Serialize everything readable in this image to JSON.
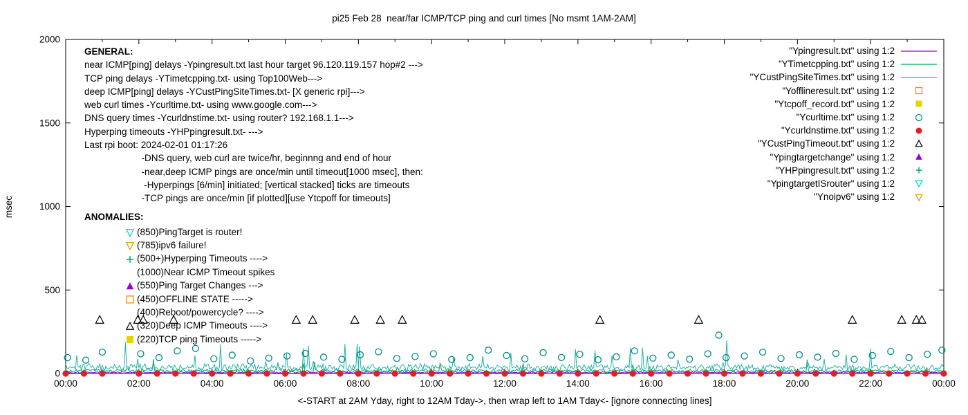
{
  "chart_data": {
    "type": "line",
    "title": "pi25 Feb 28  near/far ICMP/TCP ping and curl times [No msmt 1AM-2AM]",
    "xlabel": "<-START at 2AM Yday, right to 12AM Tday->, then wrap left to 1AM Tday<- [ignore connecting lines]",
    "ylabel": "msec",
    "xlim": [
      0,
      24
    ],
    "ylim": [
      0,
      2000
    ],
    "grid": false,
    "legend_position": "top-right",
    "xticks": [
      {
        "v": 0,
        "label": "00:00"
      },
      {
        "v": 2,
        "label": "02:00"
      },
      {
        "v": 4,
        "label": "04:00"
      },
      {
        "v": 6,
        "label": "06:00"
      },
      {
        "v": 8,
        "label": "08:00"
      },
      {
        "v": 10,
        "label": "10:00"
      },
      {
        "v": 12,
        "label": "12:00"
      },
      {
        "v": 14,
        "label": "14:00"
      },
      {
        "v": 16,
        "label": "16:00"
      },
      {
        "v": 18,
        "label": "18:00"
      },
      {
        "v": 20,
        "label": "20:00"
      },
      {
        "v": 22,
        "label": "22:00"
      },
      {
        "v": 24,
        "label": "00:00"
      }
    ],
    "yticks": [
      {
        "v": 0,
        "label": "0"
      },
      {
        "v": 500,
        "label": "500"
      },
      {
        "v": 1000,
        "label": "1000"
      },
      {
        "v": 1500,
        "label": "1500"
      },
      {
        "v": 2000,
        "label": "2000"
      }
    ],
    "series": [
      {
        "name": "Ypingresult.txt",
        "type": "noisy-line",
        "approx": true,
        "color": "#9400d3",
        "base": 7,
        "jitter": 5,
        "spike_chance": 0.004,
        "spike": 25,
        "seed": 101
      },
      {
        "name": "YTimetcpping.txt",
        "type": "noisy-line",
        "approx": true,
        "color": "#00a859",
        "base": 17,
        "jitter": 12,
        "spike_chance": 0.02,
        "spike": 70,
        "seed": 202
      },
      {
        "name": "YCustPingSiteTimes.txt",
        "type": "noisy-line",
        "approx": true,
        "color": "#20b2aa",
        "base": 36,
        "jitter": 26,
        "spike_chance": 0.05,
        "spike": 160,
        "seed": 303
      },
      {
        "name": "Ycurltime.txt",
        "type": "scatter",
        "marker": "circle-open",
        "color": "#008b8b",
        "size": 4.5,
        "points": [
          [
            0.05,
            95
          ],
          [
            0.55,
            80
          ],
          [
            1.0,
            128
          ],
          [
            2.05,
            118
          ],
          [
            2.55,
            95
          ],
          [
            3.05,
            135
          ],
          [
            3.55,
            150
          ],
          [
            4.05,
            88
          ],
          [
            4.55,
            110
          ],
          [
            5.05,
            75
          ],
          [
            5.55,
            92
          ],
          [
            6.05,
            105
          ],
          [
            6.55,
            120
          ],
          [
            7.05,
            98
          ],
          [
            7.55,
            85
          ],
          [
            8.05,
            112
          ],
          [
            8.55,
            130
          ],
          [
            9.05,
            90
          ],
          [
            9.55,
            102
          ],
          [
            10.05,
            118
          ],
          [
            10.55,
            84
          ],
          [
            11.05,
            95
          ],
          [
            11.55,
            140
          ],
          [
            12.05,
            108
          ],
          [
            12.55,
            88
          ],
          [
            13.05,
            125
          ],
          [
            13.55,
            96
          ],
          [
            14.05,
            115
          ],
          [
            14.55,
            82
          ],
          [
            15.05,
            100
          ],
          [
            15.55,
            135
          ],
          [
            16.05,
            92
          ],
          [
            16.55,
            110
          ],
          [
            17.05,
            86
          ],
          [
            17.55,
            118
          ],
          [
            17.85,
            230
          ],
          [
            18.05,
            95
          ],
          [
            18.55,
            105
          ],
          [
            19.05,
            128
          ],
          [
            19.55,
            90
          ],
          [
            20.05,
            112
          ],
          [
            20.55,
            98
          ],
          [
            21.05,
            120
          ],
          [
            21.55,
            85
          ],
          [
            22.05,
            108
          ],
          [
            22.55,
            132
          ],
          [
            23.05,
            95
          ],
          [
            23.55,
            115
          ],
          [
            23.95,
            140
          ]
        ]
      },
      {
        "name": "Ycurldnstime.txt",
        "type": "scatter",
        "marker": "circle-filled",
        "color": "#e02020",
        "size": 4.6,
        "points": [
          [
            0,
            0
          ],
          [
            0.5,
            0
          ],
          [
            1,
            0
          ],
          [
            2,
            0
          ],
          [
            2.5,
            0
          ],
          [
            3,
            0
          ],
          [
            3.5,
            0
          ],
          [
            4,
            0
          ],
          [
            4.5,
            0
          ],
          [
            5,
            0
          ],
          [
            5.5,
            0
          ],
          [
            6,
            0
          ],
          [
            6.5,
            0
          ],
          [
            7,
            0
          ],
          [
            7.5,
            0
          ],
          [
            8,
            0
          ],
          [
            8.5,
            0
          ],
          [
            9,
            0
          ],
          [
            9.5,
            0
          ],
          [
            10,
            0
          ],
          [
            10.5,
            0
          ],
          [
            11,
            0
          ],
          [
            11.5,
            0
          ],
          [
            12,
            0
          ],
          [
            12.5,
            0
          ],
          [
            13,
            0
          ],
          [
            13.5,
            0
          ],
          [
            14,
            0
          ],
          [
            14.5,
            0
          ],
          [
            15,
            0
          ],
          [
            15.5,
            0
          ],
          [
            16,
            0
          ],
          [
            16.5,
            0
          ],
          [
            17,
            0
          ],
          [
            17.5,
            0
          ],
          [
            18,
            0
          ],
          [
            18.5,
            0
          ],
          [
            19,
            0
          ],
          [
            19.5,
            0
          ],
          [
            20,
            0
          ],
          [
            20.5,
            0
          ],
          [
            21,
            0
          ],
          [
            21.5,
            0
          ],
          [
            22,
            0
          ],
          [
            22.5,
            0
          ],
          [
            23,
            0
          ],
          [
            23.5,
            0
          ],
          [
            24,
            0
          ]
        ]
      },
      {
        "name": "YCustPingTimeout.txt",
        "type": "scatter",
        "marker": "triangle-up-open",
        "color": "#000000",
        "size": 5.5,
        "points": [
          [
            0.93,
            320
          ],
          [
            1.97,
            320
          ],
          [
            2.12,
            320
          ],
          [
            2.95,
            320
          ],
          [
            6.3,
            320
          ],
          [
            6.75,
            320
          ],
          [
            7.9,
            320
          ],
          [
            8.6,
            320
          ],
          [
            9.2,
            320
          ],
          [
            14.6,
            320
          ],
          [
            17.3,
            320
          ],
          [
            21.5,
            320
          ],
          [
            22.85,
            320
          ],
          [
            23.25,
            320
          ],
          [
            23.4,
            320
          ]
        ]
      },
      {
        "name": "YHPpingresult.txt",
        "type": "scatter",
        "marker": "plus",
        "color": "#00a859",
        "size": 4,
        "points": []
      },
      {
        "name": "Ypingtargetchange",
        "type": "scatter",
        "marker": "triangle-up-filled",
        "color": "#9400d3",
        "size": 5,
        "points": []
      },
      {
        "name": "Yofflineresult.txt",
        "type": "scatter",
        "marker": "square-open",
        "color": "#ff8c00",
        "size": 4.5,
        "points": []
      },
      {
        "name": "Ytcpoff_record.txt",
        "type": "scatter",
        "marker": "square-filled",
        "color": "#e6d300",
        "size": 4.5,
        "points": []
      },
      {
        "name": "YpingtargetISrouter",
        "type": "scatter",
        "marker": "triangle-down-open",
        "color": "#00ced1",
        "size": 5,
        "points": []
      },
      {
        "name": "Ynoipv6",
        "type": "scatter",
        "marker": "triangle-down-open",
        "color": "#dd9900",
        "size": 5,
        "points": []
      }
    ]
  },
  "legend": {
    "entries": [
      {
        "label": "\"Ypingresult.txt\" using 1:2",
        "marker": "line",
        "color": "#9400d3"
      },
      {
        "label": "\"YTimetcpping.txt\" using 1:2",
        "marker": "line",
        "color": "#00a859"
      },
      {
        "label": "\"YCustPingSiteTimes.txt\" using 1:2",
        "marker": "line",
        "color": "#20b2aa"
      },
      {
        "label": "\"Yofflineresult.txt\" using 1:2",
        "marker": "square-open",
        "color": "#ff8c00"
      },
      {
        "label": "\"Ytcpoff_record.txt\" using 1:2",
        "marker": "square-filled",
        "color": "#e6d300"
      },
      {
        "label": "\"Ycurltime.txt\" using 1:2",
        "marker": "circle-open",
        "color": "#008b8b"
      },
      {
        "label": "\"Ycurldnstime.txt\" using 1:2",
        "marker": "circle-filled",
        "color": "#e02020"
      },
      {
        "label": "\"YCustPingTimeout.txt\" using 1:2",
        "marker": "triangle-up-open",
        "color": "#000000"
      },
      {
        "label": "\"Ypingtargetchange\" using 1:2",
        "marker": "triangle-up-filled",
        "color": "#9400d3"
      },
      {
        "label": "\"YHPpingresult.txt\" using 1:2",
        "marker": "plus",
        "color": "#00a859"
      },
      {
        "label": "\"YpingtargetISrouter\" using 1:2",
        "marker": "triangle-down-open",
        "color": "#00ced1"
      },
      {
        "label": "\"Ynoipv6\" using 1:2",
        "marker": "triangle-down-open",
        "color": "#dd9900"
      }
    ]
  },
  "annotations": {
    "general": {
      "heading": "GENERAL:",
      "lines": [
        "near ICMP[ping] delays -Ypingresult.txt last hour target 96.120.119.157 hop#2 --->",
        "TCP ping delays -YTimetcpping.txt- using Top100Web--->",
        "deep ICMP[ping] delays -YCustPingSiteTimes.txt- [X generic rpi]--->",
        "web curl times -Ycurltime.txt- using www.google.com--->",
        "DNS query times -Ycurldnstime.txt- using router? 192.168.1.1--->",
        "Hyperping timeouts -YHPpingresult.txt- --->",
        "Last rpi boot: 2024-02-01 01:17:26",
        "                      -DNS query, web curl are twice/hr, beginnng and end of hour",
        "                      -near,deep ICMP pings are once/min until timeout[1000 msec], then:",
        "                       -Hyperpings [6/min] initiated; [vertical stacked] ticks are timeouts",
        "                      -TCP pings are once/min [if plotted][use Ytcpoff for timeouts]"
      ]
    },
    "anomalies": {
      "heading": "ANOMALIES:",
      "items": [
        {
          "marker": "triangle-down-open",
          "color": "#00ced1",
          "text": "(850)PingTarget is router!"
        },
        {
          "marker": "triangle-down-open",
          "color": "#dd9900",
          "text": "(785)ipv6 failure!"
        },
        {
          "marker": "plus",
          "color": "#00a859",
          "text": "(500+)Hyperping Timeouts ---->"
        },
        {
          "marker": null,
          "color": null,
          "text": "(1000)Near ICMP Timeout spikes"
        },
        {
          "marker": "triangle-up-filled",
          "color": "#9400d3",
          "text": "(550)Ping Target Changes --->"
        },
        {
          "marker": "square-open",
          "color": "#ff8c00",
          "text": "(450)OFFLINE STATE ----->"
        },
        {
          "marker": null,
          "color": null,
          "text": "(400)Reboot/powercycle? ---->"
        },
        {
          "marker": "triangle-up-open",
          "color": "#000000",
          "text": "(320)Deep ICMP Timeouts ---->"
        },
        {
          "marker": "square-filled",
          "color": "#e6d300",
          "text": "(220)TCP ping Timeouts ----->"
        }
      ]
    }
  }
}
